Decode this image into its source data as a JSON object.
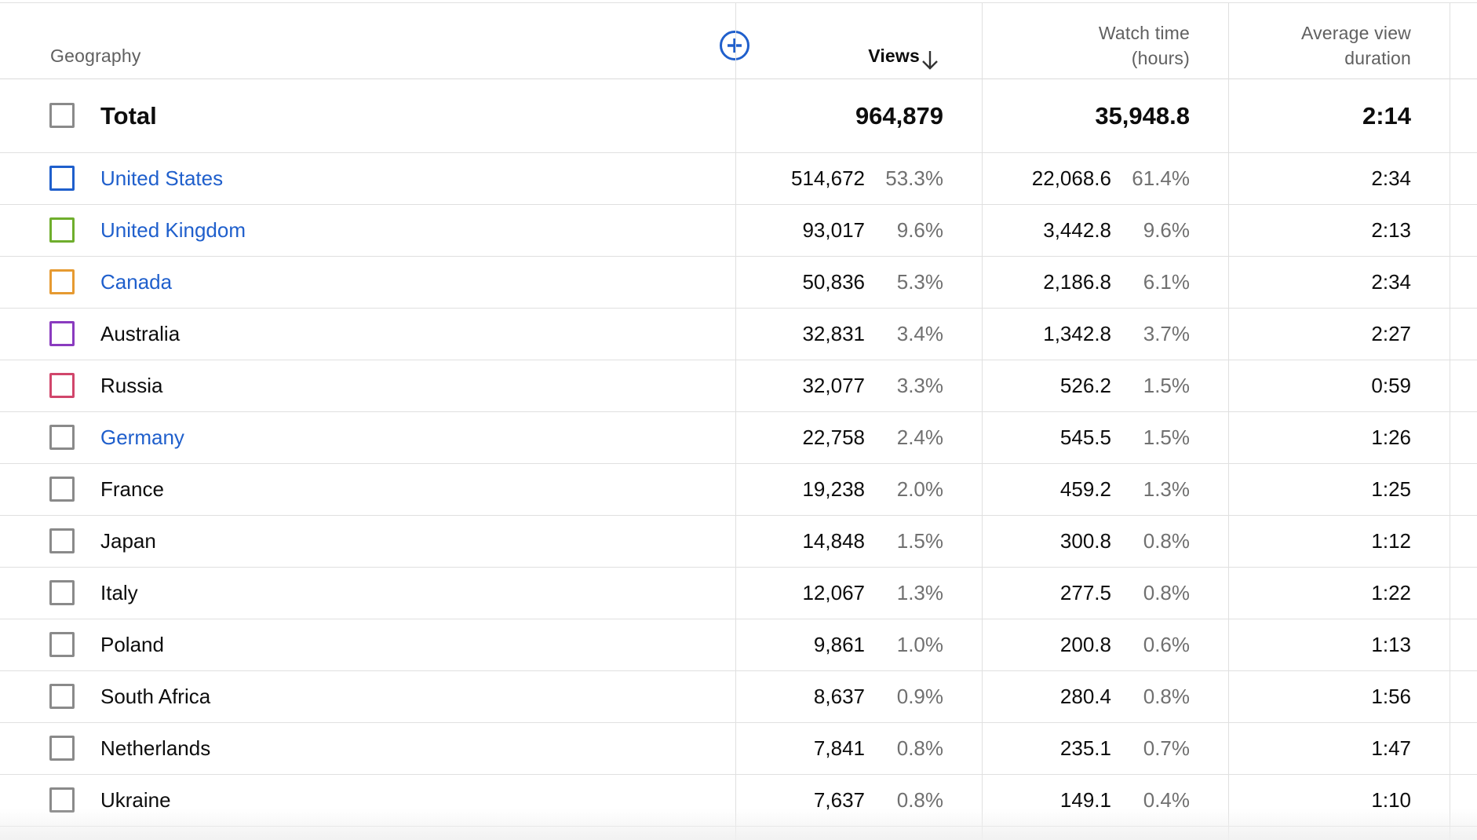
{
  "header": {
    "geography": "Geography",
    "views": "Views",
    "watch_time_line1": "Watch time",
    "watch_time_line2": "(hours)",
    "avg_line1": "Average view",
    "avg_line2": "duration"
  },
  "icons": {
    "add": "plus-circle-icon",
    "sort": "arrow-down-icon"
  },
  "colors": {
    "link": "#1f5fcc",
    "add_icon": "#1f5fcc"
  },
  "total": {
    "label": "Total",
    "views": "964,879",
    "watch_time": "35,948.8",
    "avg_duration": "2:14"
  },
  "rows": [
    {
      "country": "United States",
      "views": "514,672",
      "views_pct": "53.3%",
      "watch": "22,068.6",
      "watch_pct": "61.4%",
      "avg": "2:34",
      "checkbox_color": "#1f5fcc",
      "link": true
    },
    {
      "country": "United Kingdom",
      "views": "93,017",
      "views_pct": "9.6%",
      "watch": "3,442.8",
      "watch_pct": "9.6%",
      "avg": "2:13",
      "checkbox_color": "#6fae2d",
      "link": true
    },
    {
      "country": "Canada",
      "views": "50,836",
      "views_pct": "5.3%",
      "watch": "2,186.8",
      "watch_pct": "6.1%",
      "avg": "2:34",
      "checkbox_color": "#e69a31",
      "link": true
    },
    {
      "country": "Australia",
      "views": "32,831",
      "views_pct": "3.4%",
      "watch": "1,342.8",
      "watch_pct": "3.7%",
      "avg": "2:27",
      "checkbox_color": "#8a3bbf",
      "link": false
    },
    {
      "country": "Russia",
      "views": "32,077",
      "views_pct": "3.3%",
      "watch": "526.2",
      "watch_pct": "1.5%",
      "avg": "0:59",
      "checkbox_color": "#d1466b",
      "link": false
    },
    {
      "country": "Germany",
      "views": "22,758",
      "views_pct": "2.4%",
      "watch": "545.5",
      "watch_pct": "1.5%",
      "avg": "1:26",
      "checkbox_color": "#8a8a8a",
      "link": true
    },
    {
      "country": "France",
      "views": "19,238",
      "views_pct": "2.0%",
      "watch": "459.2",
      "watch_pct": "1.3%",
      "avg": "1:25",
      "checkbox_color": "#8a8a8a",
      "link": false
    },
    {
      "country": "Japan",
      "views": "14,848",
      "views_pct": "1.5%",
      "watch": "300.8",
      "watch_pct": "0.8%",
      "avg": "1:12",
      "checkbox_color": "#8a8a8a",
      "link": false
    },
    {
      "country": "Italy",
      "views": "12,067",
      "views_pct": "1.3%",
      "watch": "277.5",
      "watch_pct": "0.8%",
      "avg": "1:22",
      "checkbox_color": "#8a8a8a",
      "link": false
    },
    {
      "country": "Poland",
      "views": "9,861",
      "views_pct": "1.0%",
      "watch": "200.8",
      "watch_pct": "0.6%",
      "avg": "1:13",
      "checkbox_color": "#8a8a8a",
      "link": false
    },
    {
      "country": "South Africa",
      "views": "8,637",
      "views_pct": "0.9%",
      "watch": "280.4",
      "watch_pct": "0.8%",
      "avg": "1:56",
      "checkbox_color": "#8a8a8a",
      "link": false
    },
    {
      "country": "Netherlands",
      "views": "7,841",
      "views_pct": "0.8%",
      "watch": "235.1",
      "watch_pct": "0.7%",
      "avg": "1:47",
      "checkbox_color": "#8a8a8a",
      "link": false
    },
    {
      "country": "Ukraine",
      "views": "7,637",
      "views_pct": "0.8%",
      "watch": "149.1",
      "watch_pct": "0.4%",
      "avg": "1:10",
      "checkbox_color": "#8a8a8a",
      "link": false
    }
  ]
}
